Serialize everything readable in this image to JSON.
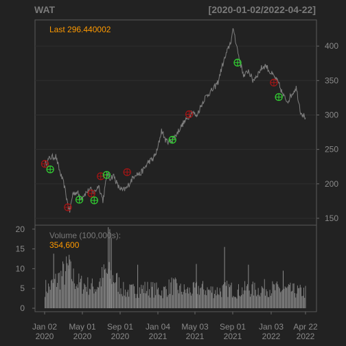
{
  "header": {
    "symbol": "WAT",
    "date_range": "[2020-01-02/2022-04-22]"
  },
  "colors": {
    "background": "#222222",
    "price_line": "#7f7f7f",
    "volume_bars": "#8c8c8c",
    "buy_marker": "#32cd32",
    "sell_marker": "#a31515",
    "annotation": "#ff9a00",
    "grid": "#2e2e2e"
  },
  "price_panel": {
    "last_label": "Last 296.440002",
    "y_ticks": [
      "150",
      "200",
      "250",
      "300",
      "350",
      "400"
    ]
  },
  "volume_panel": {
    "label": "Volume (100,000s):",
    "value": "354,600",
    "y_ticks": [
      "0",
      "5",
      "10",
      "15",
      "20"
    ]
  },
  "x_axis": {
    "ticks": [
      {
        "top": "Jan 02",
        "bottom": "2020"
      },
      {
        "top": "May 01",
        "bottom": "2020"
      },
      {
        "top": "Sep 01",
        "bottom": "2020"
      },
      {
        "top": "Jan 04",
        "bottom": "2021"
      },
      {
        "top": "May 03",
        "bottom": "2021"
      },
      {
        "top": "Sep 01",
        "bottom": "2021"
      },
      {
        "top": "Jan 03",
        "bottom": "2022"
      },
      {
        "top": "Apr 22",
        "bottom": "2022"
      }
    ]
  },
  "chart_data": {
    "type": "line",
    "title": "WAT",
    "subtitle": "[2020-01-02/2022-04-22]",
    "x_unit": "date",
    "price_ylim": [
      140,
      438
    ],
    "volume_ylim": [
      0,
      21
    ],
    "grid": true,
    "legend": "none",
    "price": {
      "x": [
        "2020-01-02",
        "2020-01-20",
        "2020-02-07",
        "2020-02-21",
        "2020-03-05",
        "2020-03-16",
        "2020-03-23",
        "2020-04-02",
        "2020-04-15",
        "2020-04-28",
        "2020-05-12",
        "2020-05-27",
        "2020-06-10",
        "2020-06-24",
        "2020-07-08",
        "2020-07-22",
        "2020-07-29",
        "2020-08-12",
        "2020-08-26",
        "2020-09-09",
        "2020-09-23",
        "2020-10-07",
        "2020-10-21",
        "2020-11-04",
        "2020-11-18",
        "2020-12-02",
        "2020-12-16",
        "2020-12-30",
        "2021-01-13",
        "2021-01-27",
        "2021-02-10",
        "2021-02-24",
        "2021-03-10",
        "2021-03-24",
        "2021-04-07",
        "2021-04-21",
        "2021-05-05",
        "2021-05-19",
        "2021-06-02",
        "2021-06-16",
        "2021-06-30",
        "2021-07-14",
        "2021-07-28",
        "2021-08-11",
        "2021-08-25",
        "2021-09-02",
        "2021-09-08",
        "2021-09-22",
        "2021-10-06",
        "2021-10-20",
        "2021-11-03",
        "2021-11-17",
        "2021-12-01",
        "2021-12-15",
        "2021-12-29",
        "2022-01-12",
        "2022-01-26",
        "2022-02-09",
        "2022-02-23",
        "2022-03-09",
        "2022-03-23",
        "2022-04-06",
        "2022-04-22"
      ],
      "y": [
        228,
        238,
        240,
        216,
        198,
        172,
        160,
        186,
        188,
        180,
        186,
        192,
        187,
        198,
        176,
        215,
        208,
        212,
        196,
        190,
        194,
        205,
        215,
        214,
        222,
        232,
        236,
        248,
        278,
        262,
        262,
        268,
        278,
        288,
        295,
        306,
        298,
        312,
        325,
        332,
        338,
        348,
        372,
        390,
        408,
        425,
        410,
        378,
        356,
        365,
        350,
        358,
        368,
        372,
        362,
        355,
        345,
        328,
        320,
        330,
        340,
        305,
        296
      ],
      "unit": "USD"
    },
    "volume": {
      "x": [
        "2020-01",
        "2020-02",
        "2020-03",
        "2020-04",
        "2020-05",
        "2020-06",
        "2020-07",
        "2020-08",
        "2020-09",
        "2020-10",
        "2020-11",
        "2020-12",
        "2021-01",
        "2021-02",
        "2021-03",
        "2021-04",
        "2021-05",
        "2021-06",
        "2021-07",
        "2021-08",
        "2021-09",
        "2021-10",
        "2021-11",
        "2021-12",
        "2022-01",
        "2022-02",
        "2022-03",
        "2022-04"
      ],
      "y": [
        5.2,
        7.5,
        9.8,
        6.4,
        5.8,
        5.2,
        9.0,
        7.4,
        4.2,
        4.5,
        5.0,
        4.8,
        4.2,
        5.8,
        4.6,
        4.3,
        5.1,
        4.5,
        4.4,
        5.0,
        4.3,
        4.9,
        4.6,
        5.2,
        4.8,
        4.6,
        4.4,
        4.1
      ],
      "unit": "100,000s"
    },
    "spikes": {
      "x": [
        "2020-01-30",
        "2020-03-20",
        "2020-07-24",
        "2020-07-29",
        "2020-08-03",
        "2020-10-27",
        "2021-05-04",
        "2021-08-03",
        "2021-10-19",
        "2022-02-08"
      ],
      "y": [
        13.8,
        13.5,
        20.5,
        20.0,
        17.8,
        11.0,
        11.2,
        15.5,
        11.0,
        9.5
      ]
    },
    "buy_signals": {
      "x": [
        "2020-01-20",
        "2020-04-23",
        "2020-06-10",
        "2020-07-20",
        "2021-02-17",
        "2021-09-15",
        "2022-01-26"
      ],
      "y": [
        221,
        177,
        176,
        213,
        264,
        376,
        326
      ]
    },
    "sell_signals": {
      "x": [
        "2020-01-03",
        "2020-03-17",
        "2020-06-01",
        "2020-07-01",
        "2020-09-24",
        "2021-04-12",
        "2022-01-10"
      ],
      "y": [
        229,
        166,
        186,
        211,
        217,
        301,
        347
      ]
    }
  }
}
